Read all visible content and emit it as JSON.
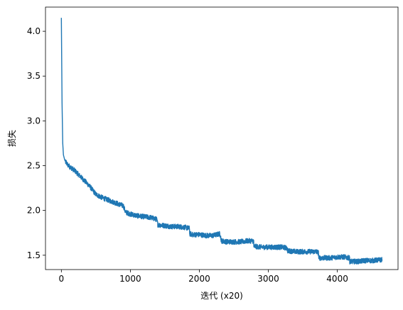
{
  "chart_data": {
    "type": "line",
    "title": "",
    "xlabel": "迭代 (x20)",
    "ylabel": "损失",
    "xlim": [
      -230,
      4880
    ],
    "ylim": [
      1.34,
      4.27
    ],
    "xticks": [
      0,
      1000,
      2000,
      3000,
      4000
    ],
    "xtick_labels": [
      "0",
      "1000",
      "2000",
      "3000",
      "4000"
    ],
    "yticks": [
      1.5,
      2.0,
      2.5,
      3.0,
      3.5,
      4.0
    ],
    "ytick_labels": [
      "1.5",
      "2.0",
      "2.5",
      "3.0",
      "3.5",
      "4.0"
    ],
    "grid": false,
    "line_color": "#1f77b4",
    "series": [
      {
        "x": [
          0,
          10,
          20,
          30,
          50,
          80,
          120,
          200,
          300,
          400,
          500,
          600,
          700,
          800,
          900,
          930,
          1000,
          1100,
          1200,
          1300,
          1380,
          1400,
          1500,
          1600,
          1700,
          1800,
          1850,
          1860,
          1900,
          2000,
          2100,
          2200,
          2300,
          2320,
          2400,
          2500,
          2600,
          2700,
          2780,
          2790,
          2900,
          3000,
          3100,
          3200,
          3270,
          3280,
          3400,
          3500,
          3600,
          3700,
          3720,
          3730,
          3800,
          3900,
          4000,
          4100,
          4170,
          4180,
          4300,
          4400,
          4500,
          4650
        ],
        "y": [
          4.15,
          3.2,
          2.75,
          2.62,
          2.56,
          2.52,
          2.49,
          2.44,
          2.36,
          2.28,
          2.18,
          2.14,
          2.11,
          2.08,
          2.05,
          1.98,
          1.96,
          1.94,
          1.93,
          1.92,
          1.9,
          1.84,
          1.83,
          1.82,
          1.82,
          1.81,
          1.8,
          1.74,
          1.73,
          1.73,
          1.72,
          1.72,
          1.74,
          1.66,
          1.65,
          1.65,
          1.65,
          1.66,
          1.66,
          1.6,
          1.59,
          1.59,
          1.59,
          1.59,
          1.58,
          1.55,
          1.54,
          1.54,
          1.54,
          1.54,
          1.53,
          1.47,
          1.47,
          1.47,
          1.48,
          1.48,
          1.47,
          1.43,
          1.43,
          1.44,
          1.44,
          1.45
        ]
      }
    ]
  }
}
